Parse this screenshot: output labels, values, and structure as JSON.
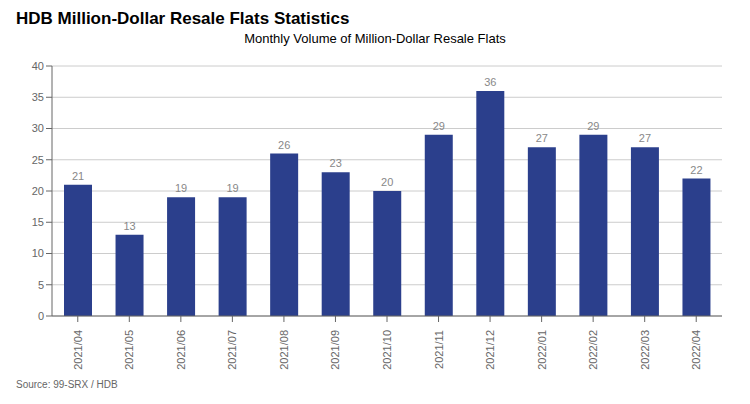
{
  "chart_data": {
    "type": "bar",
    "title": "HDB Million-Dollar Resale Flats Statistics",
    "subtitle": "Monthly Volume of Million-Dollar Resale Flats",
    "annotations": [
      "Source: 99-SRX / HDB"
    ],
    "categories": [
      "2021/04",
      "2021/05",
      "2021/06",
      "2021/07",
      "2021/08",
      "2021/09",
      "2021/10",
      "2021/11",
      "2021/12",
      "2022/01",
      "2022/02",
      "2022/03",
      "2022/04"
    ],
    "values": [
      21,
      13,
      19,
      19,
      26,
      23,
      20,
      29,
      36,
      27,
      29,
      27,
      22
    ],
    "color": "#2b3f8c",
    "ylim": [
      0,
      40
    ],
    "yticks": [
      0,
      5,
      10,
      15,
      20,
      25,
      30,
      35,
      40
    ],
    "grid": true,
    "data_labels": true
  }
}
